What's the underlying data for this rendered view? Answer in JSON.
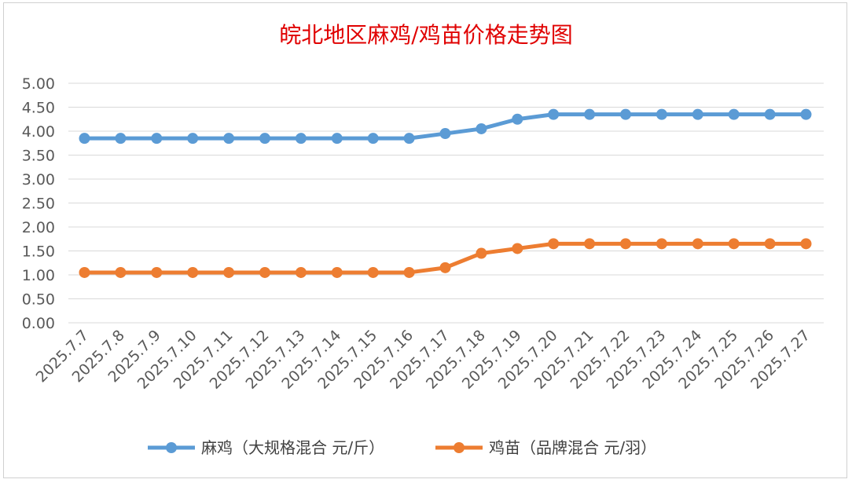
{
  "chart_data": {
    "type": "line",
    "title": "皖北地区麻鸡/鸡苗价格走势图",
    "categories": [
      "2025.7.7",
      "2025.7.8",
      "2025.7.9",
      "2025.7.10",
      "2025.7.11",
      "2025.7.12",
      "2025.7.13",
      "2025.7.14",
      "2025.7.15",
      "2025.7.16",
      "2025.7.17",
      "2025.7.18",
      "2025.7.19",
      "2025.7.20",
      "2025.7.21",
      "2025.7.22",
      "2025.7.23",
      "2025.7.24",
      "2025.7.25",
      "2025.7.26",
      "2025.7.27"
    ],
    "series": [
      {
        "name": "麻鸡（大规格混合 元/斤）",
        "color": "#5b9bd5",
        "values": [
          3.85,
          3.85,
          3.85,
          3.85,
          3.85,
          3.85,
          3.85,
          3.85,
          3.85,
          3.85,
          3.95,
          4.05,
          4.25,
          4.35,
          4.35,
          4.35,
          4.35,
          4.35,
          4.35,
          4.35,
          4.35
        ]
      },
      {
        "name": "鸡苗（品牌混合 元/羽）",
        "color": "#ed7d31",
        "values": [
          1.05,
          1.05,
          1.05,
          1.05,
          1.05,
          1.05,
          1.05,
          1.05,
          1.05,
          1.05,
          1.15,
          1.45,
          1.55,
          1.65,
          1.65,
          1.65,
          1.65,
          1.65,
          1.65,
          1.65,
          1.65
        ]
      }
    ],
    "ylim": [
      0,
      5
    ],
    "yticks": [
      "0.00",
      "0.50",
      "1.00",
      "1.50",
      "2.00",
      "2.50",
      "3.00",
      "3.50",
      "4.00",
      "4.50",
      "5.00"
    ],
    "grid": true,
    "legend": "bottom",
    "colors": {
      "title": "#e00000",
      "grid": "#d9d9d9",
      "text": "#595959"
    }
  }
}
